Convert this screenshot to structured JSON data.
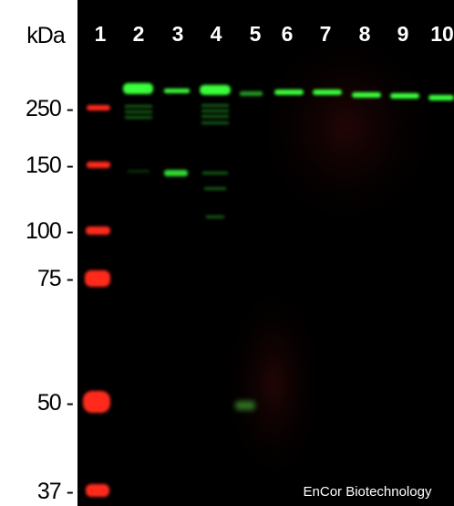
{
  "axis_label": "kDa",
  "lanes": [
    "1",
    "2",
    "3",
    "4",
    "5",
    "6",
    "7",
    "8",
    "9",
    "10"
  ],
  "markers": [
    "250 -",
    "150 -",
    "100 -",
    "75 -",
    "50 -",
    "37 -"
  ],
  "watermark": "EnCor Biotechnology"
}
